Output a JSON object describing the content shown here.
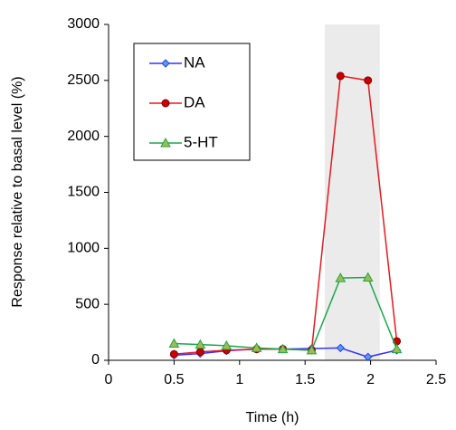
{
  "chart_data": {
    "type": "line",
    "xlabel": "Time (h)",
    "ylabel": "Response relative to basal level (%)",
    "x": [
      0.5,
      0.7,
      0.9,
      1.13,
      1.33,
      1.55,
      1.77,
      1.98,
      2.2
    ],
    "series": [
      {
        "name": "NA",
        "color": "#3333ff",
        "marker": "diamond",
        "marker_fill": "#4fa3e0",
        "values": [
          45,
          60,
          85,
          100,
          100,
          105,
          110,
          30,
          90
        ]
      },
      {
        "name": "DA",
        "color": "#e8191e",
        "marker": "circle",
        "marker_fill": "#cc0000",
        "values": [
          55,
          75,
          90,
          100,
          100,
          90,
          2540,
          2500,
          170
        ]
      },
      {
        "name": "5-HT",
        "color": "#1aa84a",
        "marker": "triangle",
        "marker_fill": "#a6b94f",
        "values": [
          150,
          140,
          130,
          110,
          100,
          90,
          735,
          740,
          100
        ]
      }
    ],
    "xlim": [
      0,
      2.5
    ],
    "xticks": [
      0,
      0.5,
      1,
      1.5,
      2,
      2.5
    ],
    "ylim": [
      0,
      3000
    ],
    "yticks": [
      0,
      500,
      1000,
      1500,
      2000,
      2500,
      3000
    ],
    "shaded_x": [
      1.65,
      2.07
    ],
    "grid": false,
    "legend_position": "upper left"
  }
}
